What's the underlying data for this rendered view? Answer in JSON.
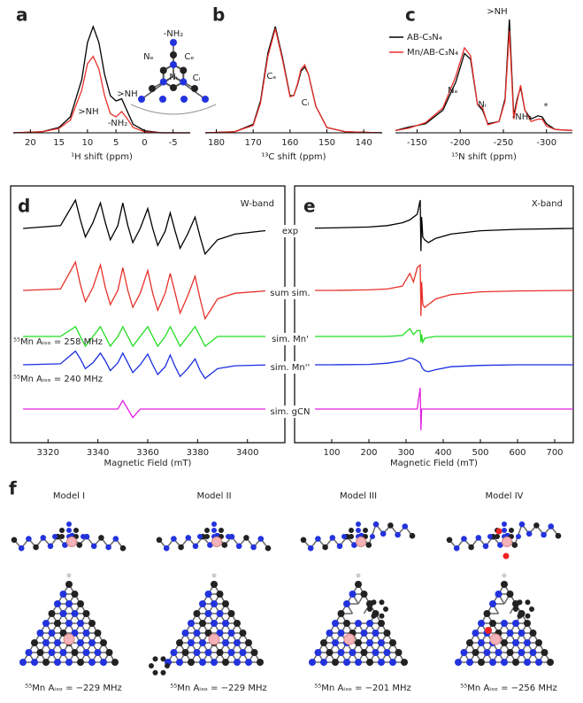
{
  "chart_data": [
    {
      "type": "spectrum",
      "panel": "a",
      "xlabel": "¹H shift (ppm)",
      "xlim": [
        23,
        -8
      ],
      "xticks": [
        20,
        15,
        10,
        5,
        0,
        -5
      ],
      "annotations": [
        ">NH",
        "-NH₂"
      ],
      "structure_labels": [
        "-NH₂",
        "Nₑ",
        "Cₑ",
        "Nᵢ",
        "Cᵢ",
        ">NH"
      ],
      "x": [
        23,
        18,
        15,
        13,
        11,
        10,
        9,
        8,
        7,
        6,
        5,
        4,
        3,
        2,
        0,
        -3,
        -8
      ],
      "series": [
        {
          "color": "#000000",
          "values": [
            0,
            0.01,
            0.05,
            0.15,
            0.5,
            0.85,
            1.0,
            0.85,
            0.55,
            0.35,
            0.3,
            0.32,
            0.2,
            0.08,
            0.02,
            0,
            0
          ]
        },
        {
          "color": "#e8302a",
          "values": [
            0,
            0.01,
            0.04,
            0.12,
            0.4,
            0.65,
            0.72,
            0.6,
            0.35,
            0.18,
            0.15,
            0.2,
            0.13,
            0.05,
            0.01,
            0,
            0
          ]
        }
      ]
    },
    {
      "type": "spectrum",
      "panel": "b",
      "xlabel": "¹³C shift (ppm)",
      "xlim": [
        183,
        135
      ],
      "xticks": [
        180,
        170,
        160,
        150,
        140
      ],
      "annotations": [
        "Cₑ",
        "Cᵢ"
      ],
      "x": [
        183,
        175,
        170,
        168,
        166,
        164,
        162,
        160,
        159,
        158,
        157,
        156,
        155,
        153,
        150,
        145,
        135
      ],
      "series": [
        {
          "color": "#000000",
          "values": [
            0,
            0.01,
            0.08,
            0.3,
            0.75,
            1.0,
            0.7,
            0.35,
            0.35,
            0.45,
            0.58,
            0.62,
            0.55,
            0.25,
            0.05,
            0.01,
            0
          ]
        },
        {
          "color": "#e8302a",
          "values": [
            0,
            0.01,
            0.07,
            0.28,
            0.72,
            0.98,
            0.68,
            0.34,
            0.35,
            0.46,
            0.6,
            0.64,
            0.55,
            0.25,
            0.05,
            0.01,
            0
          ]
        }
      ]
    },
    {
      "type": "spectrum",
      "panel": "c",
      "xlabel": "¹⁵N shift (ppm)",
      "xlim": [
        -125,
        -330
      ],
      "xticks": [
        -150,
        -200,
        -250,
        -300
      ],
      "annotations": [
        "Nₑ",
        "Nᵢ",
        ">NH",
        "-NH₂",
        "*"
      ],
      "x": [
        -125,
        -140,
        -160,
        -180,
        -195,
        -205,
        -212,
        -220,
        -226,
        -232,
        -245,
        -252,
        -257,
        -262,
        -266,
        -270,
        -275,
        -282,
        -290,
        -295,
        -300,
        -310,
        -330
      ],
      "series": [
        {
          "name": "AB-C₃N₄",
          "color": "#000000",
          "values": [
            0.02,
            0.05,
            0.08,
            0.2,
            0.45,
            0.7,
            0.65,
            0.25,
            0.2,
            0.08,
            0.1,
            0.3,
            1.0,
            0.15,
            0.3,
            0.4,
            0.2,
            0.12,
            0.15,
            0.14,
            0.08,
            0.03,
            0.02
          ]
        },
        {
          "name": "Mn/AB-C₃N₄",
          "color": "#e8302a",
          "values": [
            0.02,
            0.04,
            0.09,
            0.22,
            0.5,
            0.75,
            0.68,
            0.25,
            0.22,
            0.07,
            0.1,
            0.28,
            0.9,
            0.12,
            0.28,
            0.42,
            0.2,
            0.1,
            0.12,
            0.12,
            0.06,
            0.03,
            0.02
          ]
        }
      ]
    },
    {
      "type": "stack",
      "panel": "d",
      "band": "W-band",
      "xlabel": "Magnetic Field (mT)",
      "xlim": [
        3305,
        3415
      ],
      "xticks": [
        3320,
        3340,
        3360,
        3380,
        3400
      ],
      "annotations": [
        "⁵⁵Mn Aᵢₛₒ = 258 MHz",
        "⁵⁵Mn Aᵢₛₒ = 240 MHz"
      ],
      "x": [
        3310,
        3325,
        3331,
        3333,
        3335,
        3338,
        3341,
        3343,
        3345,
        3348,
        3350,
        3352,
        3354,
        3357,
        3360,
        3362,
        3364,
        3367,
        3369,
        3371,
        3373,
        3376,
        3379,
        3381,
        3383,
        3388,
        3395,
        3410
      ],
      "series": [
        {
          "name": "exp",
          "color": "#000000",
          "values": [
            0,
            0.1,
            1.0,
            0.3,
            -0.3,
            0.2,
            0.9,
            0.2,
            -0.4,
            0.1,
            0.9,
            0.1,
            -0.5,
            0,
            0.7,
            0,
            -0.6,
            -0.1,
            0.55,
            -0.1,
            -0.7,
            -0.2,
            0.4,
            -0.3,
            -0.9,
            -0.4,
            -0.2,
            -0.05
          ]
        },
        {
          "name": "sum sim.",
          "color": "#e8302a",
          "values": [
            0,
            0.05,
            1.0,
            0.2,
            -0.4,
            0.1,
            0.9,
            0.1,
            -0.5,
            0,
            0.8,
            0,
            -0.6,
            -0.1,
            0.7,
            -0.1,
            -0.7,
            -0.1,
            0.6,
            -0.1,
            -0.8,
            -0.2,
            0.5,
            -0.3,
            -1.0,
            -0.3,
            -0.1,
            0
          ]
        },
        {
          "name": "sim. Mn'",
          "color": "#22dd22",
          "values": [
            0,
            0,
            0.5,
            0,
            -0.5,
            0,
            0.5,
            0,
            -0.5,
            0,
            0.5,
            0,
            -0.5,
            0,
            0.5,
            0,
            -0.5,
            0,
            0.5,
            0,
            -0.5,
            0,
            0.5,
            0,
            -0.5,
            0,
            0,
            0
          ]
        },
        {
          "name": "sim. Mn''",
          "color": "#1a2ee0",
          "values": [
            0,
            0.05,
            0.7,
            0.3,
            -0.2,
            0.1,
            0.6,
            0.2,
            -0.3,
            0.1,
            0.6,
            0.1,
            -0.4,
            0,
            0.55,
            0,
            -0.5,
            -0.1,
            0.5,
            -0.1,
            -0.6,
            -0.2,
            0.3,
            -0.3,
            -0.7,
            -0.2,
            -0.05,
            0
          ]
        },
        {
          "name": "sim. gCN",
          "color": "#e020e0",
          "values": [
            0,
            0,
            0,
            0,
            0,
            0,
            0,
            0,
            0,
            0,
            0.4,
            0,
            -0.4,
            0,
            0,
            0,
            0,
            0,
            0,
            0,
            0,
            0,
            0,
            0,
            0,
            0,
            0,
            0
          ]
        }
      ]
    },
    {
      "type": "stack",
      "panel": "e",
      "band": "X-band",
      "xlabel": "Magnetic Field (mT)",
      "xlim": [
        0,
        750
      ],
      "xticks": [
        100,
        200,
        300,
        400,
        500,
        600,
        700
      ],
      "x": [
        0,
        100,
        200,
        250,
        290,
        310,
        320,
        330,
        338,
        340,
        342,
        345,
        350,
        360,
        380,
        420,
        500,
        600,
        750
      ],
      "series": [
        {
          "color": "#000000",
          "values": [
            0,
            0.02,
            0.05,
            0.1,
            0.2,
            0.3,
            0.4,
            0.5,
            1.0,
            -0.8,
            0.4,
            -0.3,
            -0.4,
            -0.5,
            -0.35,
            -0.2,
            -0.08,
            -0.03,
            0
          ]
        },
        {
          "color": "#e8302a",
          "values": [
            0,
            0,
            0.02,
            0.05,
            0.15,
            0.6,
            0.3,
            0.8,
            0.9,
            -0.9,
            0.3,
            -0.5,
            -0.6,
            -0.5,
            -0.3,
            -0.15,
            -0.05,
            -0.02,
            0
          ]
        },
        {
          "color": "#22dd22",
          "values": [
            0,
            0,
            0,
            0,
            0.05,
            0.4,
            0.1,
            0.3,
            0.3,
            -0.3,
            0.1,
            -0.3,
            -0.1,
            -0.05,
            0,
            0,
            0,
            0,
            0
          ]
        },
        {
          "color": "#1a2ee0",
          "values": [
            0,
            0,
            0.02,
            0.08,
            0.2,
            0.35,
            0.3,
            0.2,
            0.1,
            0,
            -0.1,
            -0.2,
            -0.3,
            -0.35,
            -0.25,
            -0.1,
            -0.03,
            0,
            0
          ]
        },
        {
          "color": "#e020e0",
          "values": [
            0,
            0,
            0,
            0,
            0,
            0,
            0,
            0,
            1.0,
            -1.0,
            0,
            0,
            0,
            0,
            0,
            0,
            0,
            0,
            0
          ]
        }
      ]
    }
  ],
  "models": {
    "panel": "f",
    "items": [
      {
        "title": "Model I",
        "caption": "⁵⁵Mn Aᵢₛₒ = −229 MHz"
      },
      {
        "title": "Model II",
        "caption": "⁵⁵Mn Aᵢₛₒ = −229 MHz"
      },
      {
        "title": "Model III",
        "caption": "⁵⁵Mn Aᵢₛₒ = −201 MHz"
      },
      {
        "title": "Model IV",
        "caption": "⁵⁵Mn Aᵢₛₒ = −256 MHz"
      }
    ]
  }
}
